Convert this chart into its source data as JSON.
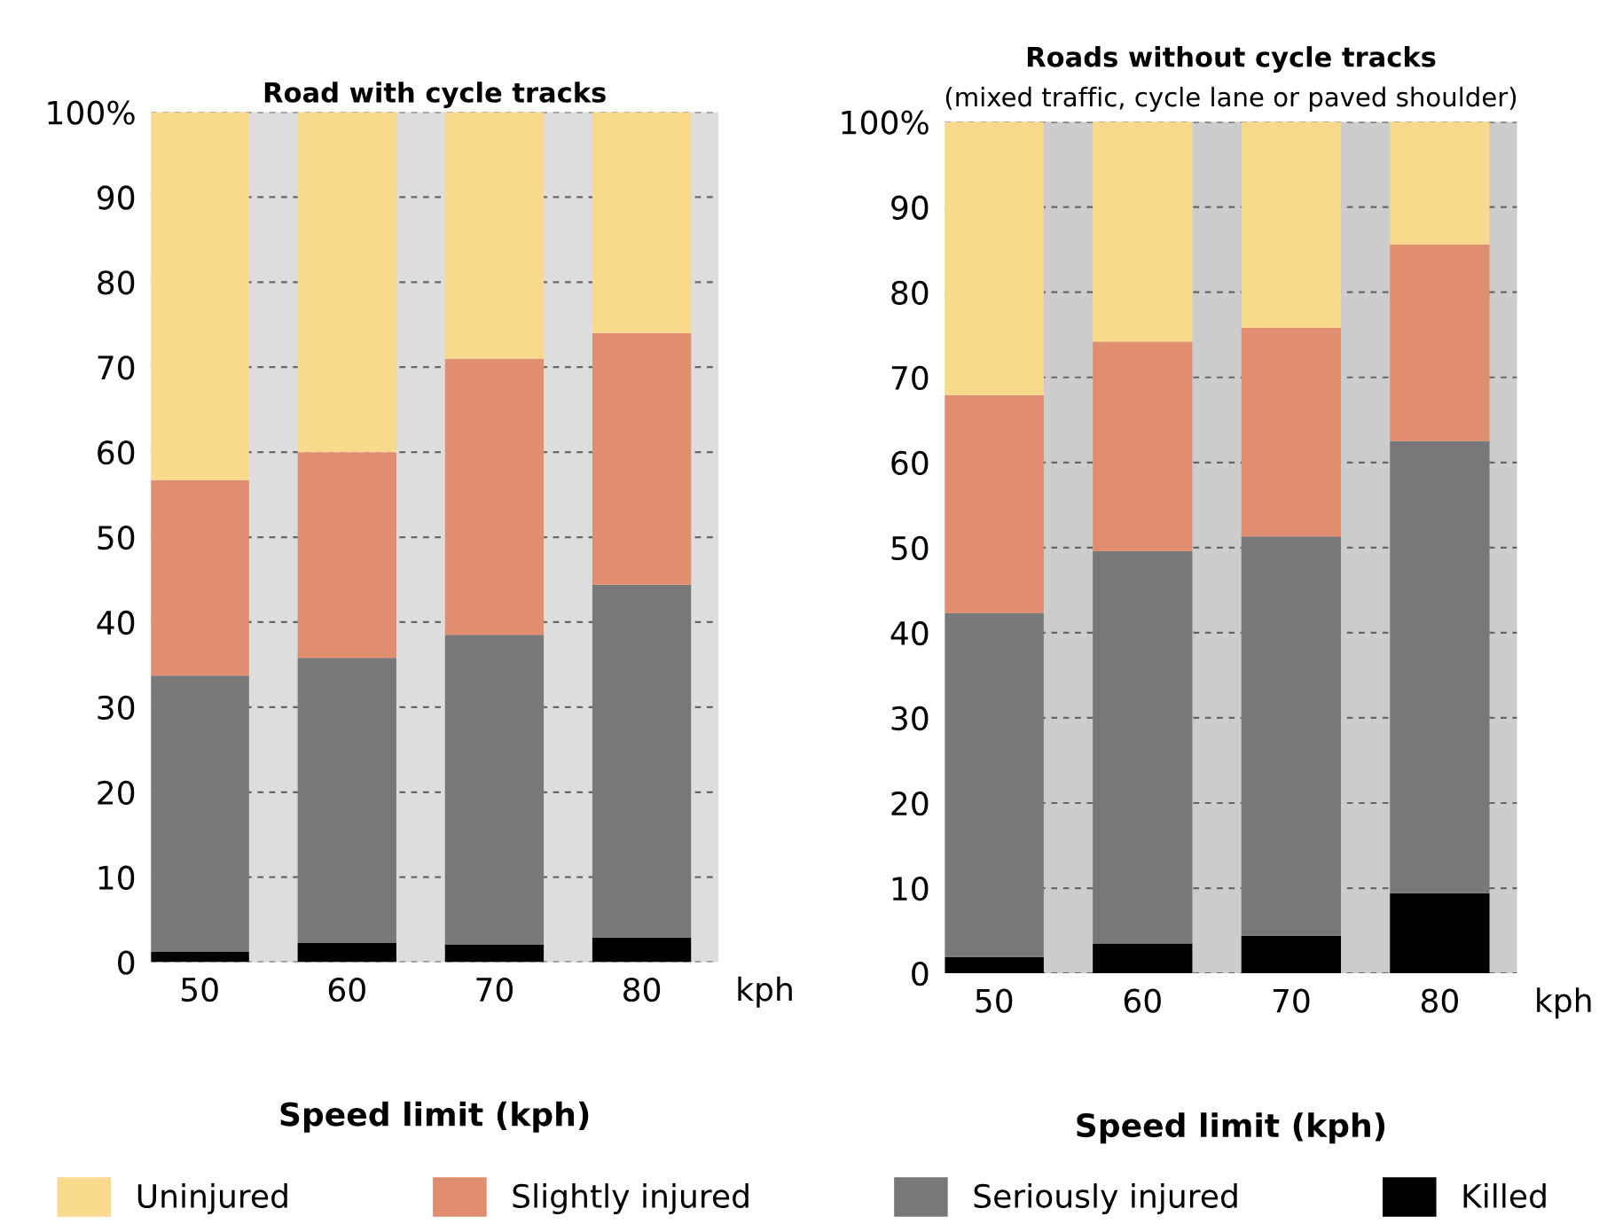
{
  "chart_data": [
    {
      "type": "bar",
      "stacked": true,
      "title": "Road with cycle tracks",
      "xlabel": "Speed limit (kph)",
      "categories": [
        "50",
        "60",
        "70",
        "80"
      ],
      "series": [
        {
          "name": "Killed",
          "color": "#000000",
          "values": [
            1.2,
            2.3,
            2.1,
            2.9
          ]
        },
        {
          "name": "Seriously injured",
          "color": "#787878",
          "values": [
            32.5,
            33.5,
            36.4,
            41.5
          ]
        },
        {
          "name": "Slightly injured",
          "color": "#e08e6f",
          "values": [
            23.0,
            24.2,
            32.5,
            29.6
          ]
        },
        {
          "name": "Uninjured",
          "color": "#f9d98b",
          "values": [
            43.3,
            40.0,
            29.0,
            26.0
          ]
        }
      ],
      "ylim": [
        0,
        100
      ],
      "yticks": [
        0,
        10,
        20,
        30,
        40,
        50,
        60,
        70,
        80,
        90,
        {
          "value": 100,
          "label": "100%"
        }
      ],
      "grid": "y",
      "legend": "bottom",
      "annotations": [
        "kph"
      ]
    },
    {
      "type": "bar",
      "stacked": true,
      "title": "Roads without cycle tracks",
      "subtitle": "(mixed traffic, cycle lane or paved shoulder)",
      "xlabel": "Speed limit (kph)",
      "categories": [
        "50",
        "60",
        "70",
        "80"
      ],
      "series": [
        {
          "color": "#000000",
          "values": [
            1.9,
            3.5,
            4.4,
            9.4
          ]
        },
        {
          "color": "#787878",
          "values": [
            40.4,
            46.1,
            46.9,
            53.1
          ]
        },
        {
          "color": "#e08e6f",
          "values": [
            25.6,
            24.6,
            24.5,
            23.1
          ]
        },
        {
          "color": "#f9d98b",
          "values": [
            32.1,
            25.8,
            24.2,
            14.4
          ]
        }
      ],
      "ylim": [
        0,
        100
      ],
      "yticks": [
        0,
        10,
        20,
        30,
        40,
        50,
        60,
        70,
        80,
        90,
        {
          "value": 100,
          "label": "100%"
        }
      ],
      "grid": "y",
      "annotations": [
        "kph"
      ]
    }
  ]
}
